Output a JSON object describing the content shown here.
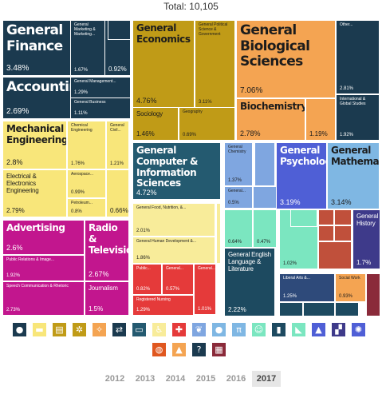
{
  "header": {
    "total": "Total: 10,105"
  },
  "chart_data": {
    "type": "treemap",
    "title": "Total: 10,105",
    "unit": "%",
    "items": [
      {
        "name": "General Finance",
        "value": 3.48,
        "color": "#1b3a4f",
        "text": "#ffffff"
      },
      {
        "name": "General Marketing & Marketing...",
        "value": 1.67,
        "color": "#1b3a4f",
        "text": "#ffffff"
      },
      {
        "name": "",
        "value": 0.92,
        "color": "#1b3a4f",
        "text": "#ffffff"
      },
      {
        "name": "Accounting",
        "value": 2.69,
        "color": "#1b3a4f",
        "text": "#ffffff"
      },
      {
        "name": "General Management...",
        "value": 1.29,
        "color": "#1b3a4f",
        "text": "#ffffff"
      },
      {
        "name": "General Business",
        "value": 1.11,
        "color": "#1b3a4f",
        "text": "#ffffff"
      },
      {
        "name": "General Economics",
        "value": 4.76,
        "color": "#c09b17",
        "text": "#1c1c1c"
      },
      {
        "name": "General Political Science & Government",
        "value": 3.11,
        "color": "#c09b17",
        "text": "#1c1c1c"
      },
      {
        "name": "Sociology",
        "value": 1.46,
        "color": "#c09b17",
        "text": "#1c1c1c"
      },
      {
        "name": "Geography",
        "value": 0.69,
        "color": "#c09b17",
        "text": "#1c1c1c"
      },
      {
        "name": "General Biological Sciences",
        "value": 7.06,
        "color": "#f4a452",
        "text": "#1c1c1c"
      },
      {
        "name": "Biochemistry",
        "value": 2.78,
        "color": "#f4a452",
        "text": "#1c1c1c"
      },
      {
        "name": "",
        "value": 1.19,
        "color": "#f4a452",
        "text": "#1c1c1c"
      },
      {
        "name": "Other...",
        "value": 2.81,
        "color": "#1b3a4f",
        "text": "#ffffff"
      },
      {
        "name": "International & Global Studies",
        "value": 1.92,
        "color": "#1b3a4f",
        "text": "#ffffff"
      },
      {
        "name": "Mechanical Engineering",
        "value": 2.8,
        "color": "#f8e67a",
        "text": "#1c1c1c"
      },
      {
        "name": "Chemical Engineering",
        "value": 1.76,
        "color": "#f8e67a",
        "text": "#1c1c1c"
      },
      {
        "name": "General Civil...",
        "value": 1.21,
        "color": "#f8e67a",
        "text": "#1c1c1c"
      },
      {
        "name": "Electrical & Electronics Engineering",
        "value": 2.79,
        "color": "#f8e67a",
        "text": "#1c1c1c"
      },
      {
        "name": "Aerospace...",
        "value": 0.99,
        "color": "#f8e67a",
        "text": "#1c1c1c"
      },
      {
        "name": "",
        "value": 0.66,
        "color": "#f8e67a",
        "text": "#1c1c1c"
      },
      {
        "name": "Petroleum...",
        "value": 0.8,
        "color": "#f8e67a",
        "text": "#1c1c1c"
      },
      {
        "name": "General Computer & Information Sciences",
        "value": 4.72,
        "color": "#245a70",
        "text": "#ffffff"
      },
      {
        "name": "General Chemistry",
        "value": 1.37,
        "color": "#7fa6e0",
        "text": "#1c1c1c"
      },
      {
        "name": "General...",
        "value": 0.5,
        "color": "#7fa6e0",
        "text": "#1c1c1c"
      },
      {
        "name": "General Psychology",
        "value": 3.19,
        "color": "#4f5fd6",
        "text": "#ffffff"
      },
      {
        "name": "General Mathematics",
        "value": 3.14,
        "color": "#7fb7e3",
        "text": "#1c1c1c"
      },
      {
        "name": "General Food, Nutrition, &...",
        "value": 2.01,
        "color": "#f8ec9a",
        "text": "#1c1c1c"
      },
      {
        "name": "General Human Development &...",
        "value": 1.86,
        "color": "#f8ec9a",
        "text": "#1c1c1c"
      },
      {
        "name": "",
        "value": 0.64,
        "color": "#7be6c0",
        "text": "#1c1c1c"
      },
      {
        "name": "",
        "value": 0.47,
        "color": "#7be6c0",
        "text": "#1c1c1c"
      },
      {
        "name": "",
        "value": 1.02,
        "color": "#7be6c0",
        "text": "#1c1c1c"
      },
      {
        "name": "General History",
        "value": 1.7,
        "color": "#3e3a8a",
        "text": "#ffffff"
      },
      {
        "name": "Advertising",
        "value": 2.6,
        "color": "#c2168e",
        "text": "#ffffff"
      },
      {
        "name": "Radio & Television",
        "value": 2.67,
        "color": "#c2168e",
        "text": "#ffffff"
      },
      {
        "name": "Public Relations & Image...",
        "value": 1.92,
        "color": "#c2168e",
        "text": "#ffffff"
      },
      {
        "name": "Speech Communication & Rhetoric",
        "value": 2.73,
        "color": "#c2168e",
        "text": "#ffffff"
      },
      {
        "name": "Journalism",
        "value": 1.5,
        "color": "#c2168e",
        "text": "#ffffff"
      },
      {
        "name": "Public...",
        "value": 0.82,
        "color": "#e53a3a",
        "text": "#ffffff"
      },
      {
        "name": "General...",
        "value": 0.57,
        "color": "#e53a3a",
        "text": "#ffffff"
      },
      {
        "name": "General...",
        "value": 1.01,
        "color": "#e53a3a",
        "text": "#ffffff"
      },
      {
        "name": "Registered Nursing",
        "value": 1.29,
        "color": "#e53a3a",
        "text": "#ffffff"
      },
      {
        "name": "General English Language & Literature",
        "value": 2.22,
        "color": "#1d4a60",
        "text": "#ffffff"
      },
      {
        "name": "Liberal Arts &...",
        "value": 1.25,
        "color": "#2e4a7a",
        "text": "#ffffff"
      },
      {
        "name": "Social Work",
        "value": 0.93,
        "color": "#f4a452",
        "text": "#1c1c1c"
      }
    ]
  },
  "categories": [
    {
      "name": "person-icon",
      "glyph": "●",
      "color": "#1b3a4f"
    },
    {
      "name": "document-icon",
      "glyph": "▬",
      "color": "#f8e67a"
    },
    {
      "name": "newspaper-icon",
      "glyph": "▤",
      "color": "#c09b17"
    },
    {
      "name": "gears-icon",
      "glyph": "✲",
      "color": "#c09b17"
    },
    {
      "name": "dna-icon",
      "glyph": "✧",
      "color": "#f4a452"
    },
    {
      "name": "arrows-icon",
      "glyph": "⇄",
      "color": "#1b3a4f"
    },
    {
      "name": "computer-icon",
      "glyph": "▭",
      "color": "#245a70"
    },
    {
      "name": "accessibility-icon",
      "glyph": "♿",
      "color": "#f8ec9a"
    },
    {
      "name": "medical-cross-icon",
      "glyph": "✚",
      "color": "#e53a3a"
    },
    {
      "name": "leaf-icon",
      "glyph": "❦",
      "color": "#7fa6e0"
    },
    {
      "name": "speech-bubble-icon",
      "glyph": "●",
      "color": "#7fb7e3"
    },
    {
      "name": "pi-icon",
      "glyph": "π",
      "color": "#7fb7e3"
    },
    {
      "name": "theater-masks-icon",
      "glyph": "☺",
      "color": "#7be6c0"
    },
    {
      "name": "book-icon",
      "glyph": "▮",
      "color": "#1d4a60"
    },
    {
      "name": "shoe-icon",
      "glyph": "◣",
      "color": "#7be6c0"
    },
    {
      "name": "landscape-icon",
      "glyph": "▲",
      "color": "#4f5fd6"
    },
    {
      "name": "chart-icon",
      "glyph": "▞",
      "color": "#3e3a8a"
    },
    {
      "name": "sun-icon",
      "glyph": "✺",
      "color": "#4f5fd6"
    },
    {
      "name": "globe-icon",
      "glyph": "◍",
      "color": "#e0571f"
    },
    {
      "name": "group-icon",
      "glyph": "▲",
      "color": "#f4a452"
    },
    {
      "name": "question-icon",
      "glyph": "?",
      "color": "#1b3a4f"
    },
    {
      "name": "grid-icon",
      "glyph": "▦",
      "color": "#8a2a3a"
    }
  ],
  "years": {
    "items": [
      "2012",
      "2013",
      "2014",
      "2015",
      "2016",
      "2017"
    ],
    "active": "2017"
  }
}
